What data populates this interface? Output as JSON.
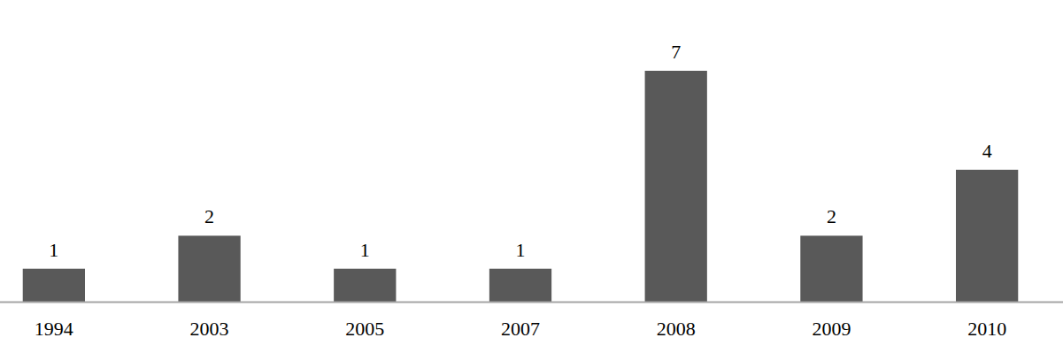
{
  "chart_data": {
    "type": "bar",
    "categories": [
      "1994",
      "2003",
      "2005",
      "2007",
      "2008",
      "2009",
      "2010"
    ],
    "values": [
      1,
      2,
      1,
      1,
      7,
      2,
      4
    ],
    "color": "#595959",
    "data_labels": true,
    "tick_labels": "x"
  }
}
